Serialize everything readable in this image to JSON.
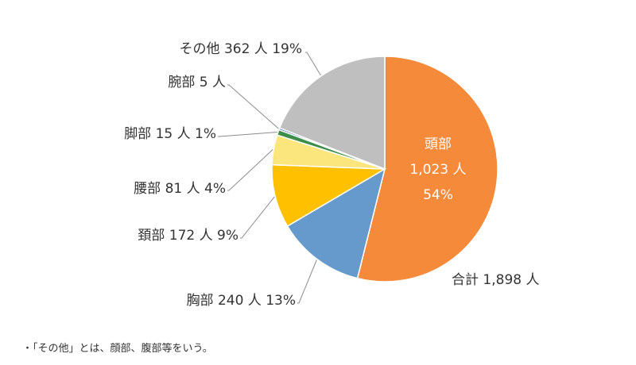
{
  "chart_data": {
    "type": "pie",
    "unit": "人",
    "total_label": "合計 1,898 人",
    "slices": [
      {
        "name": "頭部",
        "value": 1023,
        "percent": "54%",
        "label": "頭部",
        "color": "#F58A3A"
      },
      {
        "name": "胸部",
        "value": 240,
        "percent": "13%",
        "label": "胸部 240 人 13%",
        "color": "#6699CC"
      },
      {
        "name": "頚部",
        "value": 172,
        "percent": "9%",
        "label": "頚部 172 人 9%",
        "color": "#FFC000"
      },
      {
        "name": "腰部",
        "value": 81,
        "percent": "4%",
        "label": "腰部 81 人 4%",
        "color": "#FBE57D"
      },
      {
        "name": "脚部",
        "value": 15,
        "percent": "1%",
        "label": "脚部 15 人 1%",
        "color": "#3E8E4A"
      },
      {
        "name": "腕部",
        "value": 5,
        "percent": "",
        "label": "腕部 5 人",
        "color": "#3F6FB0"
      },
      {
        "name": "その他",
        "value": 362,
        "percent": "19%",
        "label": "その他 362 人 19%",
        "color": "#BFBFBF"
      }
    ],
    "inner_label": {
      "line1": "頭部",
      "line2": "1,023 人",
      "line3": "54%"
    }
  },
  "note": "・「その他」とは、顔部、腹部等をいう。"
}
